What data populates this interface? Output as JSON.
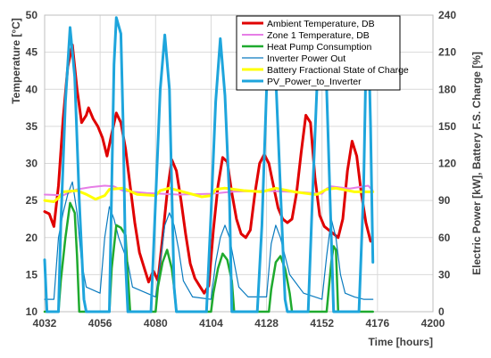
{
  "chart_data": {
    "type": "line",
    "title": "",
    "xlabel": "Time [hours]",
    "ylabel_left": "Temperature [°C]",
    "ylabel_right": "Electric Power [kW], Battery F.S. Charge [%]",
    "xlim": [
      4032,
      4200
    ],
    "ylim_left": [
      10,
      50
    ],
    "ylim_right": [
      0,
      240
    ],
    "x_ticks": [
      "4032",
      "4056",
      "4080",
      "4104",
      "4128",
      "4152",
      "4176",
      "4200"
    ],
    "y_ticks_left": [
      "10",
      "15",
      "20",
      "25",
      "30",
      "35",
      "40",
      "45",
      "50"
    ],
    "y_ticks_right": [
      "0",
      "30",
      "60",
      "90",
      "120",
      "150",
      "180",
      "210",
      "240"
    ],
    "grid": true,
    "legend_position": "top-right",
    "series": [
      {
        "name": "Ambient Temperature, DB",
        "axis": "left",
        "color": "#e00000",
        "width": 3,
        "points": [
          [
            4032,
            23.5
          ],
          [
            4034,
            23.2
          ],
          [
            4036,
            21.5
          ],
          [
            4038,
            27
          ],
          [
            4040,
            36
          ],
          [
            4042,
            43
          ],
          [
            4044,
            46
          ],
          [
            4046,
            40
          ],
          [
            4048,
            35.5
          ],
          [
            4050,
            36.5
          ],
          [
            4051,
            37.5
          ],
          [
            4053,
            36
          ],
          [
            4055,
            35
          ],
          [
            4057,
            33.5
          ],
          [
            4059,
            31
          ],
          [
            4061,
            34
          ],
          [
            4063,
            36.8
          ],
          [
            4065,
            35.5
          ],
          [
            4067,
            32
          ],
          [
            4069,
            27
          ],
          [
            4071,
            22
          ],
          [
            4073,
            18
          ],
          [
            4075,
            16
          ],
          [
            4077,
            14
          ],
          [
            4079,
            15.5
          ],
          [
            4081,
            14.2
          ],
          [
            4083,
            20
          ],
          [
            4085,
            26
          ],
          [
            4087,
            30.5
          ],
          [
            4089,
            29
          ],
          [
            4091,
            25
          ],
          [
            4093,
            20.5
          ],
          [
            4095,
            16.5
          ],
          [
            4097,
            14.5
          ],
          [
            4099,
            13.5
          ],
          [
            4101,
            12.5
          ],
          [
            4103,
            13.5
          ],
          [
            4105,
            21
          ],
          [
            4107,
            27
          ],
          [
            4109,
            30.8
          ],
          [
            4111,
            30.2
          ],
          [
            4113,
            26
          ],
          [
            4115,
            22.5
          ],
          [
            4117,
            20.5
          ],
          [
            4119,
            20
          ],
          [
            4121,
            21
          ],
          [
            4123,
            26
          ],
          [
            4125,
            30
          ],
          [
            4127,
            31.2
          ],
          [
            4129,
            30
          ],
          [
            4131,
            27
          ],
          [
            4133,
            24
          ],
          [
            4135,
            22.5
          ],
          [
            4137,
            22
          ],
          [
            4139,
            22.5
          ],
          [
            4141,
            26
          ],
          [
            4143,
            31.5
          ],
          [
            4145,
            36.5
          ],
          [
            4147,
            35.5
          ],
          [
            4149,
            28
          ],
          [
            4151,
            23
          ],
          [
            4153,
            21.5
          ],
          [
            4155,
            21
          ],
          [
            4157,
            20.5
          ],
          [
            4159,
            20
          ],
          [
            4161,
            22.5
          ],
          [
            4163,
            29
          ],
          [
            4165,
            33
          ],
          [
            4167,
            31
          ],
          [
            4169,
            26
          ],
          [
            4171,
            22
          ],
          [
            4173,
            19.5
          ]
        ]
      },
      {
        "name": "Zone 1 Temperature, DB",
        "axis": "left",
        "color": "#e67ee6",
        "width": 2,
        "points": [
          [
            4032,
            25.8
          ],
          [
            4040,
            25.7
          ],
          [
            4046,
            26.5
          ],
          [
            4052,
            26.8
          ],
          [
            4058,
            27
          ],
          [
            4062,
            26.9
          ],
          [
            4066,
            26.3
          ],
          [
            4076,
            26
          ],
          [
            4090,
            25.8
          ],
          [
            4104,
            25.9
          ],
          [
            4114,
            26.2
          ],
          [
            4128,
            26.3
          ],
          [
            4144,
            26.1
          ],
          [
            4152,
            25.9
          ],
          [
            4154,
            26.6
          ],
          [
            4156,
            26.9
          ],
          [
            4164,
            26.6
          ],
          [
            4172,
            27
          ],
          [
            4174,
            26.3
          ]
        ]
      },
      {
        "name": "Heat Pump Consumption",
        "axis": "right",
        "color": "#1faa2e",
        "width": 2.5,
        "points": [
          [
            4032,
            0
          ],
          [
            4038,
            0
          ],
          [
            4039,
            25
          ],
          [
            4041,
            60
          ],
          [
            4043,
            88
          ],
          [
            4045,
            80
          ],
          [
            4046,
            45
          ],
          [
            4047,
            0
          ],
          [
            4060,
            0
          ],
          [
            4061,
            35
          ],
          [
            4063,
            70
          ],
          [
            4065,
            68
          ],
          [
            4067,
            62
          ],
          [
            4068,
            30
          ],
          [
            4069,
            0
          ],
          [
            4080,
            0
          ],
          [
            4081,
            20
          ],
          [
            4083,
            40
          ],
          [
            4085,
            50
          ],
          [
            4087,
            35
          ],
          [
            4088,
            20
          ],
          [
            4089,
            0
          ],
          [
            4104,
            0
          ],
          [
            4105,
            15
          ],
          [
            4107,
            35
          ],
          [
            4109,
            47
          ],
          [
            4111,
            42
          ],
          [
            4113,
            25
          ],
          [
            4114,
            0
          ],
          [
            4129,
            0
          ],
          [
            4130,
            18
          ],
          [
            4132,
            40
          ],
          [
            4134,
            45
          ],
          [
            4136,
            35
          ],
          [
            4138,
            15
          ],
          [
            4139,
            0
          ],
          [
            4154,
            0
          ],
          [
            4156,
            40
          ],
          [
            4157,
            53
          ],
          [
            4158,
            50
          ],
          [
            4159,
            0
          ],
          [
            4174,
            0
          ]
        ]
      },
      {
        "name": "Inverter Power Out",
        "axis": "right",
        "color": "#0a7bbf",
        "width": 1.2,
        "points": [
          [
            4032,
            10
          ],
          [
            4036,
            10
          ],
          [
            4038,
            60
          ],
          [
            4040,
            80
          ],
          [
            4042,
            95
          ],
          [
            4044,
            105
          ],
          [
            4046,
            80
          ],
          [
            4048,
            40
          ],
          [
            4050,
            20
          ],
          [
            4056,
            15
          ],
          [
            4058,
            60
          ],
          [
            4060,
            85
          ],
          [
            4062,
            75
          ],
          [
            4064,
            60
          ],
          [
            4066,
            50
          ],
          [
            4068,
            40
          ],
          [
            4070,
            20
          ],
          [
            4080,
            12
          ],
          [
            4082,
            40
          ],
          [
            4084,
            70
          ],
          [
            4086,
            80
          ],
          [
            4088,
            70
          ],
          [
            4090,
            50
          ],
          [
            4092,
            25
          ],
          [
            4096,
            12
          ],
          [
            4104,
            10
          ],
          [
            4106,
            40
          ],
          [
            4108,
            60
          ],
          [
            4110,
            70
          ],
          [
            4112,
            60
          ],
          [
            4114,
            40
          ],
          [
            4116,
            20
          ],
          [
            4120,
            12
          ],
          [
            4128,
            12
          ],
          [
            4130,
            55
          ],
          [
            4132,
            70
          ],
          [
            4134,
            60
          ],
          [
            4136,
            45
          ],
          [
            4138,
            30
          ],
          [
            4144,
            15
          ],
          [
            4152,
            10
          ],
          [
            4154,
            45
          ],
          [
            4156,
            75
          ],
          [
            4158,
            60
          ],
          [
            4160,
            30
          ],
          [
            4162,
            15
          ],
          [
            4166,
            12
          ],
          [
            4170,
            10
          ],
          [
            4174,
            10
          ]
        ]
      },
      {
        "name": "Battery Fractional State of Charge",
        "axis": "right",
        "color": "#ffff00",
        "width": 3,
        "points": [
          [
            4032,
            90
          ],
          [
            4036,
            89
          ],
          [
            4038,
            92
          ],
          [
            4040,
            97
          ],
          [
            4046,
            98
          ],
          [
            4050,
            95
          ],
          [
            4054,
            91
          ],
          [
            4058,
            94
          ],
          [
            4060,
            99
          ],
          [
            4066,
            100
          ],
          [
            4072,
            95
          ],
          [
            4080,
            94
          ],
          [
            4082,
            98
          ],
          [
            4086,
            100
          ],
          [
            4092,
            97
          ],
          [
            4100,
            93
          ],
          [
            4104,
            94
          ],
          [
            4106,
            99
          ],
          [
            4110,
            100
          ],
          [
            4118,
            98
          ],
          [
            4126,
            97
          ],
          [
            4128,
            98
          ],
          [
            4132,
            100
          ],
          [
            4140,
            97
          ],
          [
            4148,
            95
          ],
          [
            4150,
            95
          ],
          [
            4154,
            99
          ],
          [
            4158,
            100
          ],
          [
            4166,
            97
          ],
          [
            4174,
            97
          ]
        ]
      },
      {
        "name": "PV_Power_to_Inverter",
        "axis": "right",
        "color": "#1ea5dc",
        "width": 3,
        "points": [
          [
            4032,
            42
          ],
          [
            4033,
            0
          ],
          [
            4038,
            0
          ],
          [
            4039,
            70
          ],
          [
            4041,
            170
          ],
          [
            4043,
            230
          ],
          [
            4045,
            190
          ],
          [
            4047,
            90
          ],
          [
            4049,
            10
          ],
          [
            4050,
            0
          ],
          [
            4060,
            0
          ],
          [
            4061,
            100
          ],
          [
            4062,
            200
          ],
          [
            4063,
            238
          ],
          [
            4065,
            225
          ],
          [
            4066,
            150
          ],
          [
            4067,
            40
          ],
          [
            4068,
            0
          ],
          [
            4078,
            0
          ],
          [
            4080,
            90
          ],
          [
            4082,
            180
          ],
          [
            4084,
            224
          ],
          [
            4086,
            180
          ],
          [
            4087,
            100
          ],
          [
            4088,
            20
          ],
          [
            4089,
            0
          ],
          [
            4102,
            0
          ],
          [
            4104,
            80
          ],
          [
            4106,
            170
          ],
          [
            4108,
            221
          ],
          [
            4110,
            175
          ],
          [
            4112,
            90
          ],
          [
            4113,
            0
          ],
          [
            4124,
            0
          ],
          [
            4126,
            70
          ],
          [
            4128,
            180
          ],
          [
            4130,
            226
          ],
          [
            4132,
            190
          ],
          [
            4134,
            100
          ],
          [
            4136,
            10
          ],
          [
            4137,
            0
          ],
          [
            4146,
            0
          ],
          [
            4148,
            100
          ],
          [
            4150,
            190
          ],
          [
            4152,
            229
          ],
          [
            4154,
            180
          ],
          [
            4156,
            60
          ],
          [
            4157,
            0
          ],
          [
            4168,
            0
          ],
          [
            4170,
            100
          ],
          [
            4171,
            200
          ],
          [
            4172,
            230
          ],
          [
            4173,
            150
          ],
          [
            4174,
            40
          ]
        ]
      }
    ]
  }
}
